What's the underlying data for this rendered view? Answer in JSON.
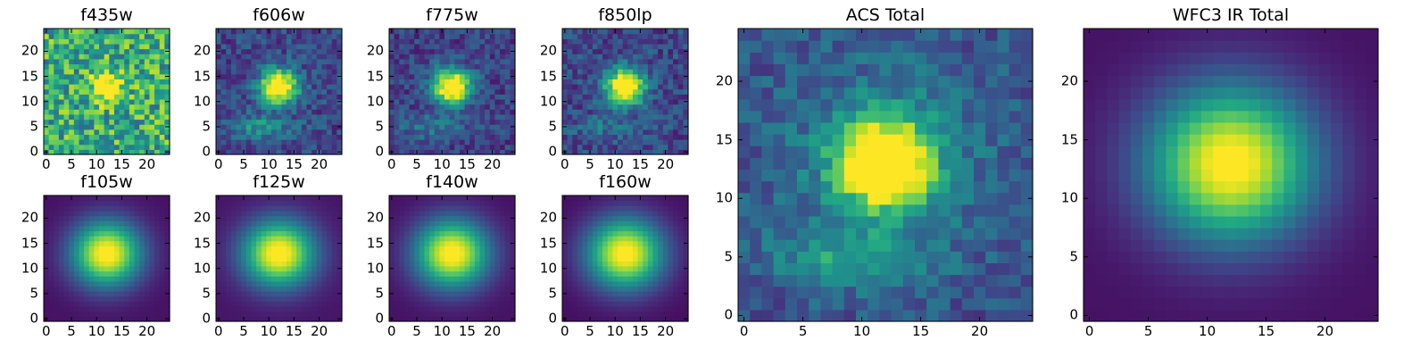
{
  "chart_data": [
    {
      "type": "heatmap",
      "title": "f435w",
      "grid_size": 25,
      "colormap": "viridis",
      "source": {
        "cx": 12,
        "cy": 13,
        "sx": 2.3,
        "sy": 2.1,
        "amp": 0.55,
        "floor": 0.62,
        "noise": 0.28
      },
      "xticks": [
        "0",
        "5",
        "10",
        "15",
        "20"
      ],
      "yticks": [
        "0",
        "5",
        "10",
        "15",
        "20"
      ],
      "xlim": [
        0,
        24
      ],
      "ylim": [
        0,
        24
      ]
    },
    {
      "type": "heatmap",
      "title": "f606w",
      "grid_size": 25,
      "colormap": "viridis",
      "source": {
        "cx": 12,
        "cy": 13,
        "sx": 2.6,
        "sy": 2.4,
        "amp": 1.0,
        "floor": 0.22,
        "noise": 0.14,
        "tail": 0.3
      },
      "xticks": [
        "0",
        "5",
        "10",
        "15",
        "20"
      ],
      "yticks": [
        "0",
        "5",
        "10",
        "15",
        "20"
      ],
      "xlim": [
        0,
        24
      ],
      "ylim": [
        0,
        24
      ]
    },
    {
      "type": "heatmap",
      "title": "f775w",
      "grid_size": 25,
      "colormap": "viridis",
      "source": {
        "cx": 12,
        "cy": 13,
        "sx": 2.6,
        "sy": 2.5,
        "amp": 1.0,
        "floor": 0.2,
        "noise": 0.13,
        "tail": 0.2
      },
      "xticks": [
        "0",
        "5",
        "10",
        "15",
        "20"
      ],
      "yticks": [
        "0",
        "5",
        "10",
        "15",
        "20"
      ],
      "xlim": [
        0,
        24
      ],
      "ylim": [
        0,
        24
      ]
    },
    {
      "type": "heatmap",
      "title": "f850lp",
      "grid_size": 25,
      "colormap": "viridis",
      "source": {
        "cx": 12,
        "cy": 13,
        "sx": 2.7,
        "sy": 2.6,
        "amp": 1.0,
        "floor": 0.22,
        "noise": 0.14,
        "tail": 0.15
      },
      "xticks": [
        "0",
        "5",
        "10",
        "15",
        "20"
      ],
      "yticks": [
        "0",
        "5",
        "10",
        "15",
        "20"
      ],
      "xlim": [
        0,
        24
      ],
      "ylim": [
        0,
        24
      ]
    },
    {
      "type": "heatmap",
      "title": "f105w",
      "grid_size": 25,
      "colormap": "viridis",
      "source": {
        "cx": 12,
        "cy": 13,
        "sx": 4.8,
        "sy": 4.5,
        "amp": 1.0,
        "floor": 0.05,
        "noise": 0.0
      },
      "xticks": [
        "0",
        "5",
        "10",
        "15",
        "20"
      ],
      "yticks": [
        "0",
        "5",
        "10",
        "15",
        "20"
      ],
      "xlim": [
        0,
        24
      ],
      "ylim": [
        0,
        24
      ]
    },
    {
      "type": "heatmap",
      "title": "f125w",
      "grid_size": 25,
      "colormap": "viridis",
      "source": {
        "cx": 12,
        "cy": 13,
        "sx": 5.0,
        "sy": 4.6,
        "amp": 1.0,
        "floor": 0.06,
        "noise": 0.0
      },
      "xticks": [
        "0",
        "5",
        "10",
        "15",
        "20"
      ],
      "yticks": [
        "0",
        "5",
        "10",
        "15",
        "20"
      ],
      "xlim": [
        0,
        24
      ],
      "ylim": [
        0,
        24
      ]
    },
    {
      "type": "heatmap",
      "title": "f140w",
      "grid_size": 25,
      "colormap": "viridis",
      "source": {
        "cx": 12,
        "cy": 13,
        "sx": 5.1,
        "sy": 4.7,
        "amp": 1.0,
        "floor": 0.05,
        "noise": 0.0
      },
      "xticks": [
        "0",
        "5",
        "10",
        "15",
        "20"
      ],
      "yticks": [
        "0",
        "5",
        "10",
        "15",
        "20"
      ],
      "xlim": [
        0,
        24
      ],
      "ylim": [
        0,
        24
      ]
    },
    {
      "type": "heatmap",
      "title": "f160w",
      "grid_size": 25,
      "colormap": "viridis",
      "source": {
        "cx": 12,
        "cy": 13,
        "sx": 5.3,
        "sy": 4.9,
        "amp": 1.0,
        "floor": 0.04,
        "noise": 0.0
      },
      "xticks": [
        "0",
        "5",
        "10",
        "15",
        "20"
      ],
      "yticks": [
        "0",
        "5",
        "10",
        "15",
        "20"
      ],
      "xlim": [
        0,
        24
      ],
      "ylim": [
        0,
        24
      ]
    },
    {
      "type": "heatmap",
      "title": "ACS Total",
      "grid_size": 25,
      "colormap": "viridis",
      "source": {
        "cx": 12,
        "cy": 13,
        "sx": 2.6,
        "sy": 2.4,
        "amp": 1.0,
        "floor": 0.25,
        "noise": 0.12,
        "tail": 0.25,
        "halo": 0.25
      },
      "xticks": [
        "0",
        "5",
        "10",
        "15",
        "20"
      ],
      "yticks": [
        "0",
        "5",
        "10",
        "15",
        "20"
      ],
      "xlim": [
        0,
        24
      ],
      "ylim": [
        0,
        24
      ]
    },
    {
      "type": "heatmap",
      "title": "WFC3 IR Total",
      "grid_size": 25,
      "colormap": "viridis",
      "source": {
        "cx": 12,
        "cy": 13,
        "sx": 4.9,
        "sy": 4.6,
        "amp": 1.0,
        "floor": 0.05,
        "noise": 0.0
      },
      "xticks": [
        "0",
        "5",
        "10",
        "15",
        "20"
      ],
      "yticks": [
        "0",
        "5",
        "10",
        "15",
        "20"
      ],
      "xlim": [
        0,
        24
      ],
      "ylim": [
        0,
        24
      ]
    }
  ]
}
